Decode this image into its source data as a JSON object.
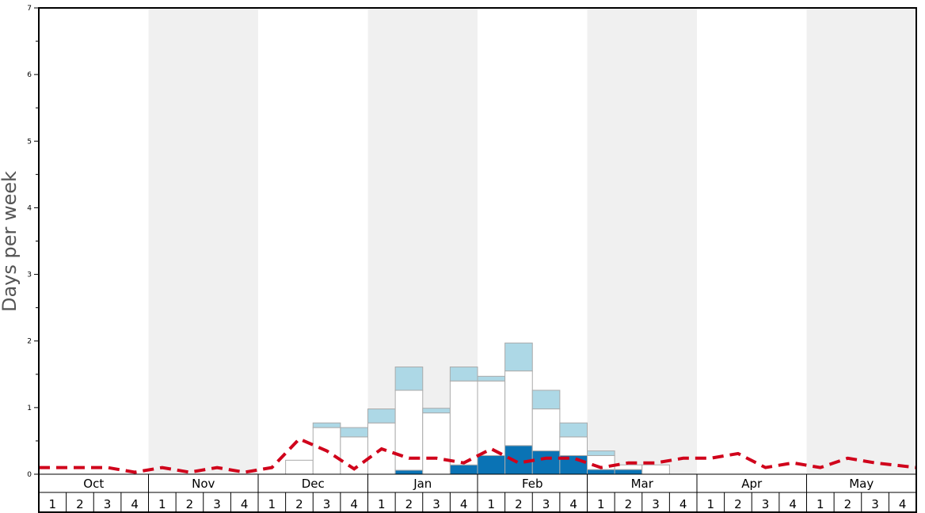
{
  "chart_data": {
    "type": "bar",
    "ylabel": "Days per week",
    "ylim": [
      0,
      7
    ],
    "yticks": [
      0,
      1,
      2,
      3,
      4,
      5,
      6,
      7
    ],
    "grid": false,
    "months": [
      "Oct",
      "Nov",
      "Dec",
      "Jan",
      "Feb",
      "Mar",
      "Apr",
      "May"
    ],
    "week_labels": [
      "1",
      "2",
      "3",
      "4"
    ],
    "colors": {
      "band_shade": "#f0f0f0",
      "bar_dark": "#0a73b5",
      "bar_white": "#ffffff",
      "bar_light": "#add8e6",
      "bar_stroke": "#aaaaaa",
      "line": "#d0021b"
    },
    "stack_series": [
      {
        "color": "dark blue",
        "values": [
          0,
          0,
          0,
          0,
          0,
          0,
          0,
          0,
          0,
          0,
          0,
          0,
          0,
          0.06,
          0,
          0.14,
          0.28,
          0.43,
          0.35,
          0.28,
          0.07,
          0.07,
          0,
          0,
          0,
          0,
          0,
          0,
          0,
          0,
          0,
          0
        ]
      },
      {
        "color": "white",
        "values": [
          0,
          0,
          0,
          0,
          0,
          0,
          0,
          0,
          0,
          0.21,
          0.7,
          0.56,
          0.77,
          1.2,
          0.92,
          1.26,
          1.12,
          1.12,
          0.63,
          0.28,
          0.21,
          0.07,
          0.14,
          0,
          0,
          0,
          0,
          0,
          0,
          0,
          0,
          0
        ]
      },
      {
        "color": "light blue",
        "values": [
          0,
          0,
          0,
          0,
          0,
          0,
          0,
          0,
          0,
          0,
          0.07,
          0.14,
          0.21,
          0.35,
          0.07,
          0.21,
          0.07,
          0.42,
          0.28,
          0.21,
          0.07,
          0,
          0,
          0,
          0,
          0,
          0,
          0,
          0,
          0,
          0,
          0
        ]
      }
    ],
    "line_series": {
      "style": "dashed",
      "values": [
        0.1,
        0.1,
        0.1,
        0.03,
        0.1,
        0.03,
        0.1,
        0.03,
        0.1,
        0.53,
        0.35,
        0.08,
        0.38,
        0.24,
        0.24,
        0.17,
        0.38,
        0.17,
        0.24,
        0.24,
        0.1,
        0.17,
        0.17,
        0.24,
        0.24,
        0.31,
        0.1,
        0.17,
        0.1,
        0.24,
        0.17,
        0.1
      ]
    }
  }
}
